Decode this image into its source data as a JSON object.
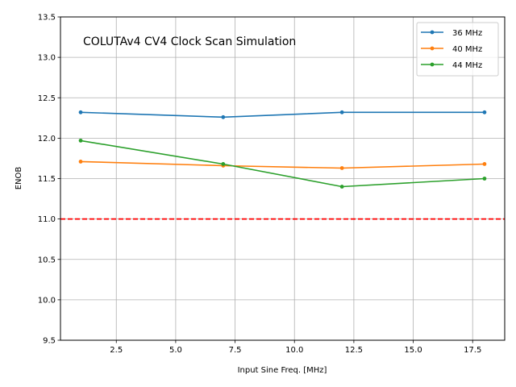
{
  "chart_data": {
    "type": "line",
    "title": "COLUTAv4 CV4 Clock Scan Simulation",
    "xlabel": "Input Sine Freq. [MHz]",
    "ylabel": "ENOB",
    "xlim": [
      0.15,
      18.85
    ],
    "ylim": [
      9.5,
      13.5
    ],
    "xticks": [
      2.5,
      5.0,
      7.5,
      10.0,
      12.5,
      15.0,
      17.5
    ],
    "xtick_labels": [
      "2.5",
      "5.0",
      "7.5",
      "10.0",
      "12.5",
      "15.0",
      "17.5"
    ],
    "yticks": [
      9.5,
      10.0,
      10.5,
      11.0,
      11.5,
      12.0,
      12.5,
      13.0,
      13.5
    ],
    "ytick_labels": [
      "9.5",
      "10.0",
      "10.5",
      "11.0",
      "11.5",
      "12.0",
      "12.5",
      "13.0",
      "13.5"
    ],
    "grid": true,
    "legend_position": "top-right",
    "x": [
      1,
      7,
      12,
      18
    ],
    "series": [
      {
        "name": "36 MHz",
        "color": "#1f77b4",
        "values": [
          12.32,
          12.26,
          12.32,
          12.32
        ]
      },
      {
        "name": "40 MHz",
        "color": "#ff7f0e",
        "values": [
          11.71,
          11.66,
          11.63,
          11.68
        ]
      },
      {
        "name": "44 MHz",
        "color": "#2ca02c",
        "values": [
          11.97,
          11.68,
          11.4,
          11.5
        ]
      }
    ],
    "reference_line": {
      "y": 11.0,
      "color": "#ff0000",
      "style": "dashed"
    }
  }
}
